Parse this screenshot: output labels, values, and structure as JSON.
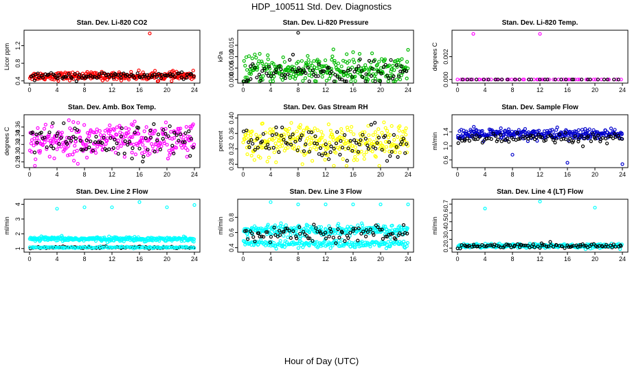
{
  "title": "HDP_100511  Std. Dev. Diagnostics",
  "xlabel_shared": "Hour of Day (UTC)",
  "colors": {
    "black": "#000000"
  },
  "chart_data": [
    {
      "type": "scatter",
      "title": "Stan. Dev. Li-820 CO2",
      "ylabel": "Licor ppm",
      "xlim": [
        0,
        24
      ],
      "ylim": [
        0.38,
        1.52
      ],
      "color": "#ff0000",
      "xticks": [
        0,
        4,
        8,
        12,
        16,
        20,
        24
      ],
      "yticks": [
        0.4,
        0.8,
        1.2
      ],
      "series": [
        {
          "name": "",
          "color": "#ff0000",
          "mean": 0.51,
          "sd": 0.045,
          "n": 300
        },
        {
          "name": "",
          "color": "#000000",
          "mean": 0.51,
          "sd": 0.04,
          "n": 90
        }
      ],
      "outliers": [
        {
          "x": 17.5,
          "y": 1.48,
          "color": "#ff0000"
        }
      ]
    },
    {
      "type": "scatter",
      "title": "Stan. Dev. Li-820 Pressure",
      "ylabel": "kPa",
      "xlim": [
        0,
        24
      ],
      "ylim": [
        -0.001,
        0.021
      ],
      "color": "#00bb00",
      "xticks": [
        0,
        4,
        8,
        12,
        16,
        20,
        24
      ],
      "yticks": [
        0.0,
        0.005,
        0.01,
        0.015
      ],
      "series": [
        {
          "name": "",
          "color": "#00bb00",
          "mean": 0.004,
          "sd": 0.003,
          "n": 300
        },
        {
          "name": "",
          "color": "#000000",
          "mean": 0.003,
          "sd": 0.0025,
          "n": 90
        }
      ],
      "outliers": [
        {
          "x": 8,
          "y": 0.0205,
          "color": "#000000"
        },
        {
          "x": 16,
          "y": 0.012,
          "color": "#00bb00"
        },
        {
          "x": 24,
          "y": 0.013,
          "color": "#00bb00"
        }
      ]
    },
    {
      "type": "scatter",
      "title": "Stan. Dev. Li-820 Temp.",
      "ylabel": "degrees C",
      "xlim": [
        0,
        24
      ],
      "ylim": [
        -0.0002,
        0.0042
      ],
      "color": "#ff00ff",
      "xticks": [
        0,
        4,
        8,
        12,
        16,
        20,
        24
      ],
      "yticks": [
        0.0,
        0.002
      ],
      "series": [
        {
          "name": "",
          "color": "#ff00ff",
          "mean": 0.0,
          "sd": 0.0,
          "n": 60
        },
        {
          "name": "",
          "color": "#000000",
          "mean": 0.0,
          "sd": 0.0,
          "n": 30
        }
      ],
      "outliers": [
        {
          "x": 2.3,
          "y": 0.004,
          "color": "#ff00ff"
        },
        {
          "x": 12,
          "y": 0.004,
          "color": "#ff00ff"
        }
      ]
    },
    {
      "type": "scatter",
      "title": "Stan. Dev. Amb. Box Temp.",
      "ylabel": "degrees C",
      "xlim": [
        0,
        24
      ],
      "ylim": [
        0.27,
        0.385
      ],
      "color": "#ff00ff",
      "xticks": [
        0,
        4,
        8,
        12,
        16,
        20,
        24
      ],
      "yticks": [
        0.28,
        0.3,
        0.32,
        0.34,
        0.36
      ],
      "series": [
        {
          "name": "",
          "color": "#ff00ff",
          "mean": 0.328,
          "sd": 0.02,
          "n": 300
        },
        {
          "name": "",
          "color": "#000000",
          "mean": 0.328,
          "sd": 0.018,
          "n": 90
        }
      ],
      "outliers": []
    },
    {
      "type": "scatter",
      "title": "Stan. Dev. Gas Stream RH",
      "ylabel": "percent",
      "xlim": [
        0,
        24
      ],
      "ylim": [
        0.275,
        0.405
      ],
      "color": "#ffff00",
      "xticks": [
        0,
        4,
        8,
        12,
        16,
        20,
        24
      ],
      "yticks": [
        0.28,
        0.32,
        0.36,
        0.4
      ],
      "series": [
        {
          "name": "",
          "color": "#ffff00",
          "mean": 0.338,
          "sd": 0.022,
          "n": 300
        },
        {
          "name": "",
          "color": "#000000",
          "mean": 0.336,
          "sd": 0.02,
          "n": 90
        }
      ],
      "outliers": []
    },
    {
      "type": "scatter",
      "title": "Stan. Dev. Sample Flow",
      "ylabel": "ml/min",
      "xlim": [
        0,
        24
      ],
      "ylim": [
        0.42,
        1.85
      ],
      "color": "#0000cc",
      "xticks": [
        0,
        4,
        8,
        12,
        16,
        20,
        24
      ],
      "yticks": [
        0.6,
        1.0,
        1.4
      ],
      "series": [
        {
          "name": "",
          "color": "#0000cc",
          "mean": 1.33,
          "sd": 0.08,
          "n": 300
        },
        {
          "name": "",
          "color": "#000000",
          "mean": 1.2,
          "sd": 0.07,
          "n": 90
        }
      ],
      "outliers": [
        {
          "x": 8,
          "y": 0.75,
          "color": "#0000cc"
        },
        {
          "x": 16,
          "y": 0.52,
          "color": "#0000cc"
        },
        {
          "x": 24,
          "y": 0.48,
          "color": "#0000cc"
        }
      ]
    },
    {
      "type": "scatter",
      "title": "Stan. Dev. Line 2 Flow",
      "ylabel": "ml/min",
      "xlim": [
        0,
        24
      ],
      "ylim": [
        0.85,
        4.25
      ],
      "color": "#00ffff",
      "xticks": [
        0,
        4,
        8,
        12,
        16,
        20,
        24
      ],
      "yticks": [
        1,
        2,
        3,
        4
      ],
      "series": [
        {
          "name": "",
          "color": "#00ffff",
          "mean": 1.65,
          "sd": 0.07,
          "n": 300
        },
        {
          "name": "",
          "color": "#000000",
          "mean": 1.08,
          "sd": 0.03,
          "n": 90
        },
        {
          "name": "",
          "color": "#00ffff",
          "mean": 1.08,
          "sd": 0.03,
          "n": 120
        }
      ],
      "outliers": [
        {
          "x": 4,
          "y": 3.7,
          "color": "#00ffff"
        },
        {
          "x": 8,
          "y": 3.8,
          "color": "#00ffff"
        },
        {
          "x": 12,
          "y": 3.8,
          "color": "#00ffff"
        },
        {
          "x": 16,
          "y": 4.15,
          "color": "#00ffff"
        },
        {
          "x": 20,
          "y": 3.8,
          "color": "#00ffff"
        },
        {
          "x": 24,
          "y": 3.95,
          "color": "#00ffff"
        }
      ]
    },
    {
      "type": "scatter",
      "title": "Stan. Dev. Line 3 Flow",
      "ylabel": "ml/min",
      "xlim": [
        0,
        24
      ],
      "ylim": [
        0.36,
        1.02
      ],
      "color": "#00ffff",
      "xticks": [
        0,
        4,
        8,
        12,
        16,
        20,
        24
      ],
      "yticks": [
        0.4,
        0.6,
        0.8
      ],
      "series": [
        {
          "name": "",
          "color": "#00ffff",
          "mean": 0.63,
          "sd": 0.035,
          "n": 260
        },
        {
          "name": "",
          "color": "#00ffff",
          "mean": 0.45,
          "sd": 0.025,
          "n": 200
        },
        {
          "name": "",
          "color": "#000000",
          "mean": 0.58,
          "sd": 0.05,
          "n": 90
        }
      ],
      "outliers": [
        {
          "x": 4,
          "y": 1.0,
          "color": "#00ffff"
        },
        {
          "x": 8,
          "y": 0.97,
          "color": "#00ffff"
        },
        {
          "x": 12,
          "y": 0.97,
          "color": "#00ffff"
        },
        {
          "x": 16,
          "y": 0.97,
          "color": "#00ffff"
        },
        {
          "x": 20,
          "y": 0.97,
          "color": "#00ffff"
        },
        {
          "x": 24,
          "y": 0.97,
          "color": "#00ffff"
        }
      ]
    },
    {
      "type": "scatter",
      "title": "Stan. Dev. Line 4 (LT) Flow",
      "ylabel": "ml/min",
      "xlim": [
        0,
        24
      ],
      "ylim": [
        0.17,
        0.74
      ],
      "color": "#00ffff",
      "xticks": [
        0,
        4,
        8,
        12,
        16,
        20,
        24
      ],
      "yticks": [
        0.2,
        0.3,
        0.4,
        0.5,
        0.6,
        0.7
      ],
      "series": [
        {
          "name": "",
          "color": "#00ffff",
          "mean": 0.225,
          "sd": 0.012,
          "n": 300
        },
        {
          "name": "",
          "color": "#000000",
          "mean": 0.225,
          "sd": 0.012,
          "n": 90
        }
      ],
      "outliers": [
        {
          "x": 4,
          "y": 0.65,
          "color": "#00ffff"
        },
        {
          "x": 12,
          "y": 0.73,
          "color": "#00ffff"
        },
        {
          "x": 20,
          "y": 0.66,
          "color": "#00ffff"
        }
      ]
    }
  ]
}
